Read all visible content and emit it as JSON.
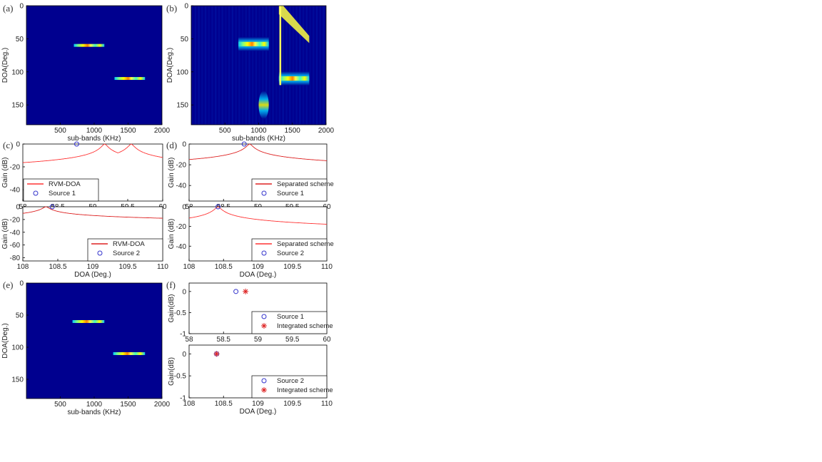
{
  "chart_data": [
    {
      "id": "a",
      "panel_label": "(a)",
      "type": "heatmap",
      "xlabel": "sub-bands (KHz)",
      "ylabel": "DOA(Deg.)",
      "xlim": [
        0,
        2000
      ],
      "ylim": [
        180,
        0
      ],
      "xticks": [
        500,
        1000,
        1500,
        2000
      ],
      "yticks": [
        0,
        50,
        100,
        150
      ],
      "background": "#00008f",
      "bands": [
        {
          "doa": 60,
          "x_start": 700,
          "x_end": 1150,
          "intensity": 1.0
        },
        {
          "doa": 110,
          "x_start": 1300,
          "x_end": 1750,
          "intensity": 1.0
        }
      ]
    },
    {
      "id": "b",
      "panel_label": "(b)",
      "type": "heatmap",
      "xlabel": "sub-bands (KHz)",
      "ylabel": "DOA(Deg.)",
      "xlim": [
        0,
        2000
      ],
      "ylim": [
        180,
        0
      ],
      "xticks": [
        500,
        1000,
        1500,
        2000
      ],
      "yticks": [
        0,
        50,
        100,
        150
      ],
      "background": "#00008f",
      "features": [
        {
          "doa": 58,
          "x_start": 700,
          "x_end": 1150,
          "intensity": 0.95
        },
        {
          "doa": 110,
          "x_start": 1300,
          "x_end": 1750,
          "intensity": 0.85
        },
        {
          "doa": 150,
          "x_start": 1000,
          "x_end": 1150,
          "intensity": 0.6
        },
        {
          "x_start": 1300,
          "x_end": 1750,
          "doa_start": 0,
          "doa_end": 50,
          "intensity": 0.85
        }
      ]
    },
    {
      "id": "c1",
      "panel_label": "(c)",
      "type": "line",
      "xlim": [
        58,
        60
      ],
      "ylim": [
        -50,
        0
      ],
      "xticks": [
        58,
        58.5,
        59,
        59.5,
        60
      ],
      "yticks": [
        0,
        -20,
        -40
      ],
      "ylabel": "Gain (dB)",
      "xlabel": "",
      "series": [
        {
          "name": "RVM-DOA",
          "color": "#ff3333",
          "peaks": [
            59.17,
            59.55
          ]
        }
      ],
      "markers": [
        {
          "name": "Source 1",
          "x": 58.77,
          "y": 0,
          "symbol": "circle",
          "color": "#3333cc"
        }
      ]
    },
    {
      "id": "c2",
      "panel_label": "",
      "type": "line",
      "xlim": [
        108,
        110
      ],
      "ylim": [
        -85,
        0
      ],
      "xticks": [
        108,
        108.5,
        109,
        109.5,
        110
      ],
      "yticks": [
        0,
        -20,
        -40,
        -60,
        -80
      ],
      "ylabel": "Gain (dB)",
      "xlabel": "DOA (Deg.)",
      "series": [
        {
          "name": "RVM-DOA",
          "color": "#dd2222",
          "peaks": [
            108.33
          ]
        }
      ],
      "markers": [
        {
          "name": "Source 2",
          "x": 108.42,
          "y": 0,
          "symbol": "circle",
          "color": "#3333cc"
        }
      ]
    },
    {
      "id": "d1",
      "panel_label": "(d)",
      "type": "line",
      "xlim": [
        58,
        60
      ],
      "ylim": [
        -55,
        0
      ],
      "xticks": [
        58,
        58.5,
        59,
        59.5,
        60
      ],
      "yticks": [
        0,
        -20,
        -40
      ],
      "ylabel": "Gain (dB)",
      "xlabel": "",
      "series": [
        {
          "name": "Separated scheme",
          "color": "#dd2222",
          "peaks": [
            58.88
          ]
        }
      ],
      "markers": [
        {
          "name": "Source 1",
          "x": 58.8,
          "y": 0,
          "symbol": "circle",
          "color": "#3333cc"
        }
      ]
    },
    {
      "id": "d2",
      "panel_label": "",
      "type": "line",
      "xlim": [
        108,
        110
      ],
      "ylim": [
        -55,
        0
      ],
      "xticks": [
        108,
        108.5,
        109,
        109.5,
        110
      ],
      "yticks": [
        0,
        -20,
        -40
      ],
      "ylabel": "Gain (dB)",
      "xlabel": "DOA (Deg.)",
      "series": [
        {
          "name": "Separated scheme",
          "color": "#ff3333",
          "peaks": [
            108.42
          ]
        }
      ],
      "markers": [
        {
          "name": "Source 2",
          "x": 108.42,
          "y": 0,
          "symbol": "circle",
          "color": "#3333cc"
        }
      ]
    },
    {
      "id": "e",
      "panel_label": "(e)",
      "type": "heatmap",
      "xlabel": "sub-bands (KHz)",
      "ylabel": "DOA(Deg.)",
      "xlim": [
        0,
        2000
      ],
      "ylim": [
        180,
        0
      ],
      "xticks": [
        500,
        1000,
        1500,
        2000
      ],
      "yticks": [
        0,
        50,
        100,
        150
      ],
      "background": "#00008f",
      "bands": [
        {
          "doa": 60,
          "x_start": 680,
          "x_end": 1150,
          "intensity": 1.0
        },
        {
          "doa": 110,
          "x_start": 1280,
          "x_end": 1750,
          "intensity": 1.0
        }
      ]
    },
    {
      "id": "f1",
      "panel_label": "(f)",
      "type": "scatter",
      "xlim": [
        58,
        60
      ],
      "ylim": [
        -1,
        0.2
      ],
      "xticks": [
        58,
        58.5,
        59,
        59.5,
        60
      ],
      "yticks": [
        0,
        -0.5,
        -1
      ],
      "ylabel": "Gain(dB)",
      "xlabel": "",
      "markers": [
        {
          "name": "Source 1",
          "x": 58.68,
          "y": 0,
          "symbol": "circle",
          "color": "#3333cc"
        },
        {
          "name": "Integrated scheme",
          "x": 58.82,
          "y": 0,
          "symbol": "star",
          "color": "#dd2222"
        }
      ]
    },
    {
      "id": "f2",
      "panel_label": "",
      "type": "scatter",
      "xlim": [
        108,
        110
      ],
      "ylim": [
        -1,
        0.2
      ],
      "xticks": [
        108,
        108.5,
        109,
        109.5,
        110
      ],
      "yticks": [
        0,
        -0.5,
        -1
      ],
      "ylabel": "Gain(dB)",
      "xlabel": "DOA (Deg.)",
      "markers": [
        {
          "name": "Source 2",
          "x": 108.4,
          "y": 0,
          "symbol": "circle",
          "color": "#3333cc"
        },
        {
          "name": "Integrated scheme",
          "x": 108.4,
          "y": 0,
          "symbol": "star",
          "color": "#dd2222"
        }
      ]
    }
  ]
}
